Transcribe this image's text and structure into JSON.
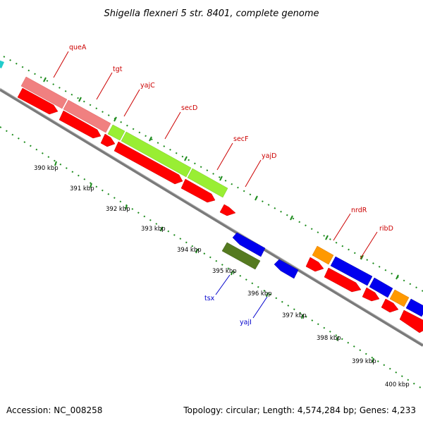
{
  "title": "Shigella flexneri 5 str. 8401, complete genome",
  "footer": {
    "accession": "Accession: NC_008258",
    "summary": "Topology: circular; Length: 4,574,284 bp; Genes: 4,233"
  },
  "colors": {
    "background": "#ffffff",
    "backbone": "#888888",
    "tick_ring": "#1e8c1e",
    "label_forward": "#cc0000",
    "label_reverse": "#0000cc"
  },
  "ticks": [
    "390 kbp",
    "391 kbp",
    "392 kbp",
    "393 kbp",
    "394 kbp",
    "395 kbp",
    "396 kbp",
    "397 kbp",
    "398 kbp",
    "399 kbp",
    "400 kbp"
  ],
  "genes_forward": [
    {
      "label": "queA",
      "color": "#f08080"
    },
    {
      "label": "tgt",
      "color": "#f08080"
    },
    {
      "label": "yajC",
      "color": "#99ee33"
    },
    {
      "label": "secD",
      "color": "#99ee33"
    },
    {
      "label": "secF",
      "color": "#99ee33"
    },
    {
      "label": "yajD",
      "color": "#ff0000"
    },
    {
      "label": "nrdR",
      "color": "#ff9900"
    },
    {
      "label": "ribD",
      "color": "#0000ee"
    }
  ],
  "genes_reverse": [
    {
      "label": "tsx",
      "color": "#557a20"
    },
    {
      "label": "yajI",
      "color": "#0000ee"
    }
  ]
}
